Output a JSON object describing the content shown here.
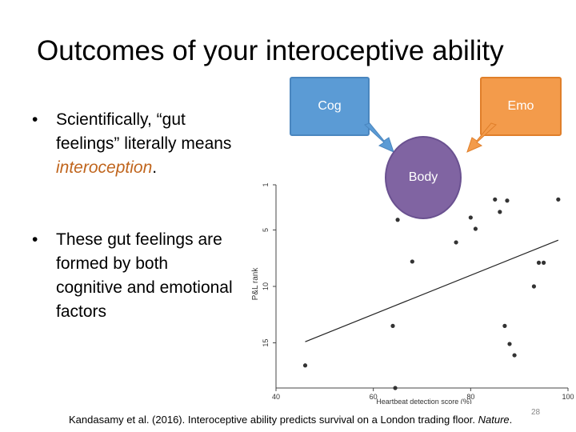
{
  "slide": {
    "title": "Outcomes of your interoceptive ability",
    "bullet1_pre": "Scientifically, “gut feelings” literally means ",
    "bullet1_em": "interoception",
    "bullet1_post": ".",
    "bullet2": "These gut feelings are formed by both cognitive and emotional factors",
    "page_number": "28",
    "citation_main": "Kandasamy et al. (2016). Interoceptive ability predicts survival on a London trading floor. ",
    "citation_journal": "Nature",
    "citation_end": "."
  },
  "diagram": {
    "cog_label": "Cog",
    "emo_label": "Emo",
    "body_label": "Body",
    "colors": {
      "cog": "#5b9bd5",
      "emo": "#f39b4b",
      "body": "#8064a2"
    }
  },
  "chart_data": {
    "type": "scatter",
    "xlabel": "Heartbeat detection score (%)",
    "ylabel": "P&L rank",
    "xlim": [
      40,
      100
    ],
    "ylim": [
      1,
      19
    ],
    "y_inverted": true,
    "xticks": [
      40,
      60,
      80,
      100
    ],
    "yticks": [
      1,
      5,
      10,
      15
    ],
    "points": [
      {
        "x": 46,
        "y": 17
      },
      {
        "x": 64,
        "y": 13.5
      },
      {
        "x": 64.5,
        "y": 19
      },
      {
        "x": 65,
        "y": 4.1
      },
      {
        "x": 68,
        "y": 7.8
      },
      {
        "x": 77,
        "y": 6.1
      },
      {
        "x": 80,
        "y": 3.9
      },
      {
        "x": 81,
        "y": 4.9
      },
      {
        "x": 85,
        "y": 2.3
      },
      {
        "x": 86,
        "y": 3.4
      },
      {
        "x": 87,
        "y": 13.5
      },
      {
        "x": 87.5,
        "y": 2.4
      },
      {
        "x": 88,
        "y": 15.1
      },
      {
        "x": 89,
        "y": 16.1
      },
      {
        "x": 93,
        "y": 10.0
      },
      {
        "x": 94,
        "y": 7.9
      },
      {
        "x": 95,
        "y": 7.9
      },
      {
        "x": 98,
        "y": 2.3
      }
    ],
    "trendline": {
      "x": [
        46,
        98
      ],
      "y": [
        14.9,
        5.9
      ]
    }
  }
}
